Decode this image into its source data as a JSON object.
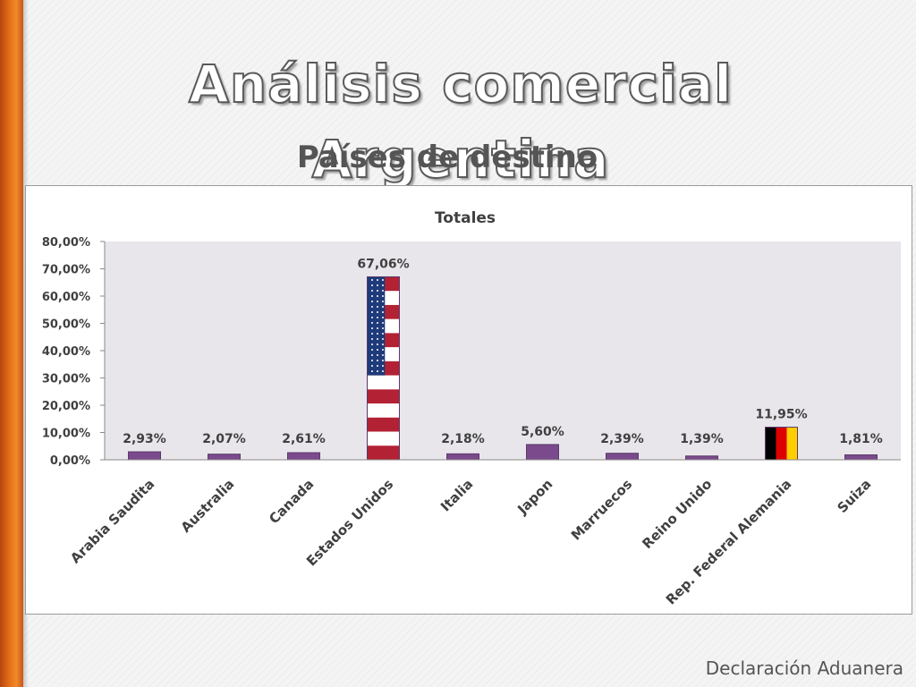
{
  "slide": {
    "title": "Análisis comercial Argentina",
    "subtitle": "Países de destino",
    "footer": "Declaración Aduanera",
    "accent_color": "#e8731a"
  },
  "chart_data": {
    "type": "bar",
    "title": "Totales",
    "xlabel": "",
    "ylabel": "",
    "categories": [
      "Arabia Saudita",
      "Australia",
      "Canada",
      "Estados Unidos",
      "Italia",
      "Japon",
      "Marruecos",
      "Reino Unido",
      "Rep. Federal Alemania",
      "Suiza"
    ],
    "values": [
      2.93,
      2.07,
      2.61,
      67.06,
      2.18,
      5.6,
      2.39,
      1.39,
      11.95,
      1.81
    ],
    "data_labels": [
      "2,93%",
      "2,07%",
      "2,61%",
      "67,06%",
      "2,18%",
      "5,60%",
      "2,39%",
      "1,39%",
      "11,95%",
      "1,81%"
    ],
    "ylim": [
      0,
      80
    ],
    "y_ticks": [
      0,
      10,
      20,
      30,
      40,
      50,
      60,
      70,
      80
    ],
    "y_tick_labels": [
      "0,00%",
      "10,00%",
      "20,00%",
      "30,00%",
      "40,00%",
      "50,00%",
      "60,00%",
      "70,00%",
      "80,00%"
    ],
    "grid": false,
    "legend": "none",
    "bar_color": "#7a4a8c",
    "plot_background": "#e8e6ea",
    "bar_fills": [
      "plain",
      "plain",
      "plain",
      "us-flag",
      "plain",
      "plain",
      "plain",
      "plain",
      "germany-flag",
      "plain"
    ]
  }
}
